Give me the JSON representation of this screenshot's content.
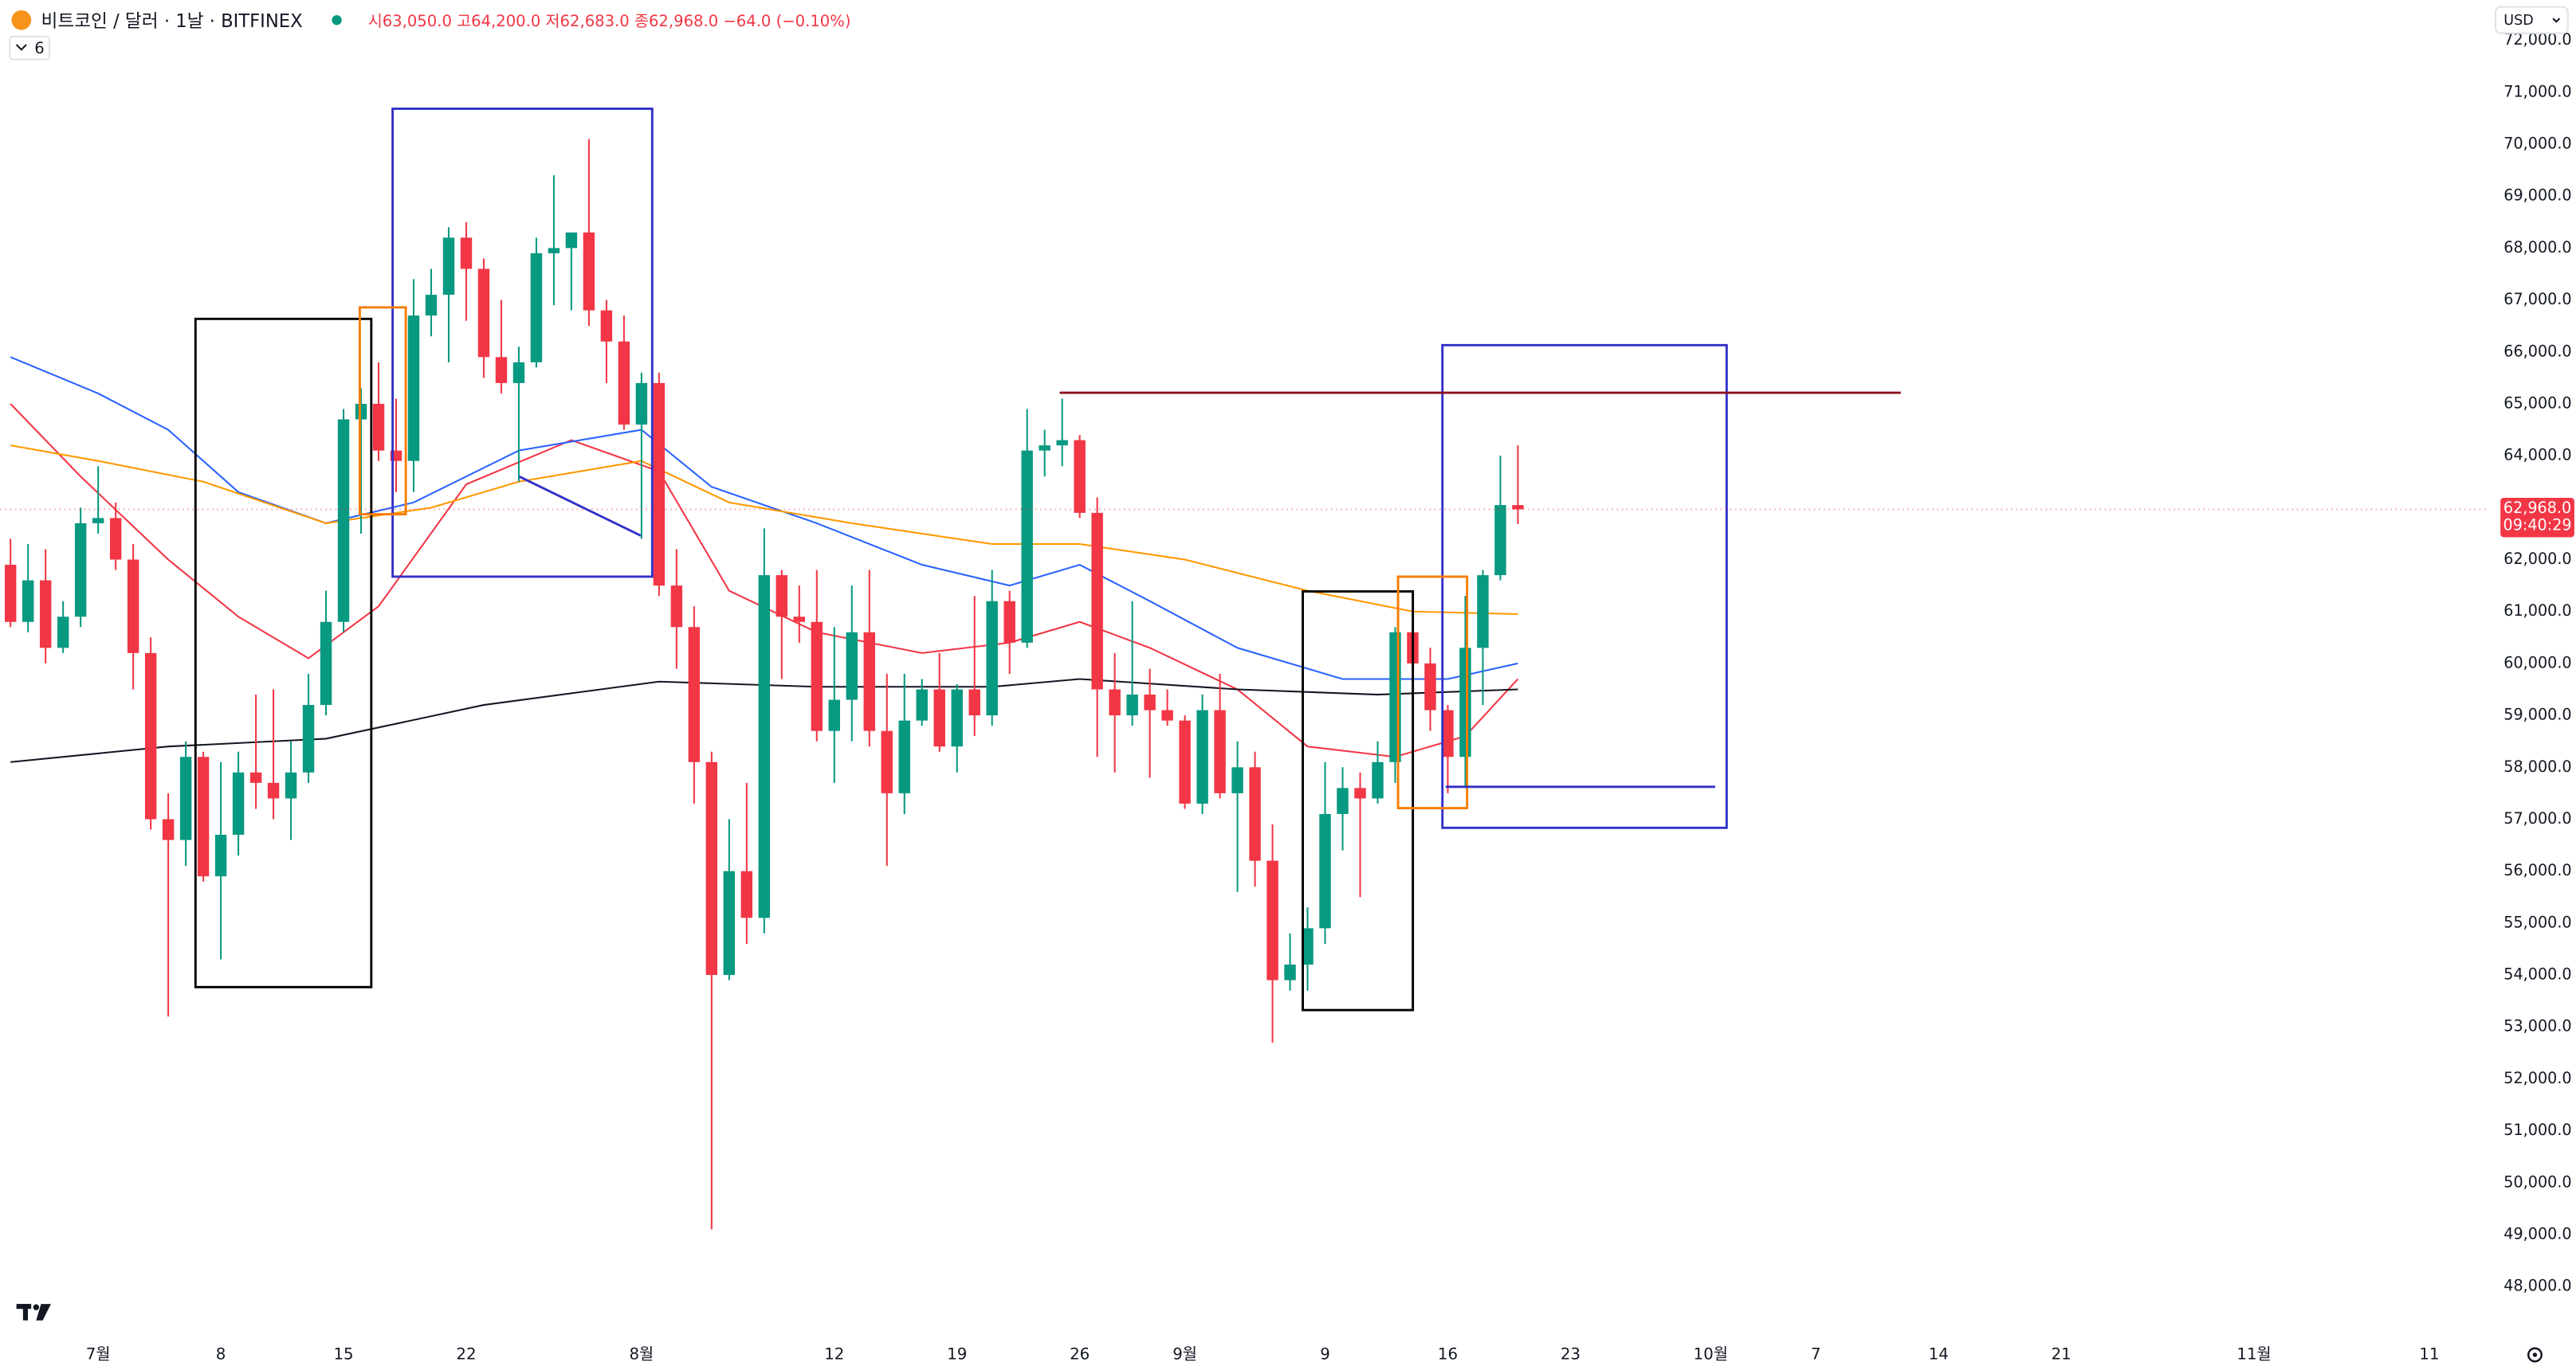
{
  "chart_data": {
    "type": "candlestick",
    "title": "비트코인 / 달러 · 1날 · BITFINEX",
    "legend_ohlc": "시63,050.0 고64,200.0 저62,683.0 종62,968.0 −64.0 (−0.10%)",
    "indicator_count": "6",
    "currency": "USD",
    "last_price_label": "62,968.0",
    "countdown": "09:40:29",
    "up_color": "#089981",
    "down_color": "#f23645",
    "x": [
      -5,
      -4,
      -3,
      -2,
      -1,
      0,
      1,
      2,
      3,
      4,
      5,
      6,
      7,
      8,
      9,
      10,
      11,
      12,
      13,
      14,
      15,
      16,
      17,
      18,
      19,
      20,
      21,
      22,
      23,
      24,
      25,
      26,
      27,
      28,
      29,
      30,
      31,
      32,
      33,
      34,
      35,
      36,
      37,
      38,
      39,
      40,
      41,
      42,
      43,
      44,
      45,
      46,
      47,
      48,
      49,
      50,
      51,
      52,
      53,
      54,
      55,
      56,
      57,
      58,
      59,
      60,
      61,
      62,
      63,
      64,
      65,
      66,
      67,
      68,
      69,
      70,
      71,
      72,
      73,
      74,
      75,
      76,
      77,
      78,
      79,
      80,
      81
    ],
    "open": [
      61900,
      60800,
      61600,
      60300,
      60900,
      62700,
      62800,
      62000,
      60200,
      57000,
      56600,
      58200,
      55900,
      56700,
      57900,
      57700,
      57400,
      57900,
      59200,
      60800,
      64700,
      65000,
      64100,
      63900,
      66700,
      67100,
      68200,
      67600,
      65900,
      65400,
      65800,
      67900,
      68000,
      68300,
      66800,
      66200,
      64600,
      65400,
      61500,
      60700,
      58100,
      54000,
      56000,
      55100,
      61700,
      60900,
      60800,
      58700,
      59300,
      60600,
      58700,
      57500,
      58900,
      59500,
      58400,
      59500,
      59000,
      61200,
      60400,
      64100,
      64200,
      64300,
      62900,
      59500,
      59000,
      59400,
      59100,
      58900,
      57300,
      59100,
      57500,
      58000,
      56200,
      53900,
      54200,
      54900,
      57100,
      57600,
      57400,
      58100,
      60600,
      60000,
      59100,
      58200,
      60300,
      61700,
      63050
    ],
    "high": [
      62400,
      62300,
      62200,
      61200,
      63000,
      63800,
      63100,
      62300,
      60500,
      57500,
      58500,
      58300,
      58100,
      58300,
      59400,
      59500,
      58500,
      59800,
      61400,
      64900,
      65300,
      65800,
      65100,
      67400,
      67600,
      68400,
      68500,
      67800,
      67000,
      66100,
      68200,
      69400,
      68300,
      70100,
      67000,
      66700,
      65600,
      65600,
      62200,
      61100,
      58300,
      57000,
      57700,
      62600,
      61800,
      61500,
      61800,
      60700,
      61500,
      61800,
      59800,
      59800,
      59700,
      60200,
      59600,
      61300,
      61800,
      61400,
      64900,
      64500,
      65100,
      64400,
      63200,
      60200,
      61200,
      59900,
      59500,
      59000,
      59400,
      59800,
      58500,
      58300,
      56900,
      54800,
      55300,
      58100,
      58000,
      57900,
      58500,
      60700,
      60700,
      60300,
      59200,
      61300,
      61800,
      64000,
      64200
    ],
    "low": [
      60700,
      60600,
      60000,
      60200,
      60700,
      62500,
      61800,
      59500,
      56800,
      53200,
      56100,
      55800,
      54300,
      56300,
      57200,
      57000,
      56600,
      57700,
      59000,
      60600,
      62500,
      63900,
      63300,
      63300,
      66300,
      65800,
      66600,
      65500,
      65200,
      63500,
      65700,
      66900,
      66800,
      66500,
      65400,
      64500,
      62400,
      61300,
      59900,
      57300,
      49100,
      53900,
      54600,
      54800,
      59700,
      60400,
      58500,
      57700,
      58500,
      58400,
      56100,
      57100,
      58800,
      58300,
      57900,
      58600,
      58800,
      59800,
      60300,
      63600,
      63800,
      62800,
      58200,
      57900,
      58800,
      57800,
      58800,
      57200,
      57100,
      57400,
      55600,
      55700,
      52700,
      53700,
      53700,
      54600,
      56400,
      55500,
      57300,
      57700,
      59500,
      58700,
      57500,
      57600,
      59200,
      61600,
      62683
    ],
    "close": [
      60800,
      61600,
      60300,
      60900,
      62700,
      62800,
      62000,
      60200,
      57000,
      56600,
      58200,
      55900,
      56700,
      57900,
      57700,
      57400,
      57900,
      59200,
      60800,
      64700,
      65000,
      64100,
      63900,
      66700,
      67100,
      68200,
      67600,
      65900,
      65400,
      65800,
      67900,
      68000,
      68300,
      66800,
      66200,
      64600,
      65400,
      61500,
      60700,
      58100,
      54000,
      56000,
      55100,
      61700,
      60900,
      60800,
      58700,
      59300,
      60600,
      58700,
      57500,
      58900,
      59500,
      58400,
      59500,
      59000,
      61200,
      60400,
      64100,
      64200,
      64300,
      62900,
      59500,
      59000,
      59400,
      59100,
      58900,
      57300,
      59100,
      57500,
      58000,
      56200,
      53900,
      54200,
      54900,
      57100,
      57600,
      57400,
      58100,
      60600,
      60000,
      59100,
      58200,
      60300,
      61700,
      63050,
      62968
    ],
    "series": [
      {
        "color": "#f23645",
        "x": [
          -5,
          -1,
          4,
          8,
          12,
          16,
          21,
          27,
          32,
          36,
          41,
          47,
          52,
          56,
          60,
          65,
          69,
          74,
          78,
          81
        ],
        "values": [
          65000,
          63600,
          62000,
          60900,
          60100,
          61100,
          63450,
          64300,
          63700,
          61400,
          60600,
          60200,
          60400,
          60800,
          60300,
          59500,
          58400,
          58200,
          58600,
          59700
        ]
      },
      {
        "color": "#2962ff",
        "x": [
          -5,
          0,
          4,
          8,
          13,
          18,
          24,
          31,
          35,
          41,
          47,
          52,
          56,
          60,
          65,
          71,
          77,
          81
        ],
        "values": [
          65900,
          65200,
          64500,
          63300,
          62700,
          63100,
          64100,
          64500,
          63400,
          62700,
          61900,
          61500,
          61900,
          61200,
          60300,
          59700,
          59700,
          60000
        ]
      },
      {
        "color": "#ff9800",
        "x": [
          -5,
          0,
          6,
          13,
          19,
          24,
          31,
          36,
          43,
          51,
          56,
          62,
          69,
          75,
          81
        ],
        "values": [
          64200,
          63900,
          63500,
          62700,
          63000,
          63500,
          63900,
          63100,
          62700,
          62300,
          62300,
          62000,
          61400,
          61000,
          60950
        ]
      },
      {
        "color": "#131722",
        "x": [
          -5,
          4,
          13,
          22,
          32,
          41,
          51,
          56,
          65,
          73,
          81
        ],
        "values": [
          58100,
          58400,
          58550,
          59200,
          59650,
          59550,
          59550,
          59700,
          59500,
          59400,
          59500
        ]
      }
    ],
    "xlim": [
      -5.6,
      136.4
    ],
    "xticks": [
      {
        "value": 0,
        "label": "7월"
      },
      {
        "value": 7,
        "label": "8"
      },
      {
        "value": 14,
        "label": "15"
      },
      {
        "value": 21,
        "label": "22"
      },
      {
        "value": 31,
        "label": "8월"
      },
      {
        "value": 42,
        "label": "12"
      },
      {
        "value": 49,
        "label": "19"
      },
      {
        "value": 56,
        "label": "26"
      },
      {
        "value": 62,
        "label": "9월"
      },
      {
        "value": 70,
        "label": "9"
      },
      {
        "value": 77,
        "label": "16"
      },
      {
        "value": 84,
        "label": "23"
      },
      {
        "value": 92,
        "label": "10월"
      },
      {
        "value": 98,
        "label": "7"
      },
      {
        "value": 105,
        "label": "14"
      },
      {
        "value": 112,
        "label": "21"
      },
      {
        "value": 123,
        "label": "11월"
      },
      {
        "value": 133,
        "label": "11"
      }
    ],
    "ylim": [
      47000,
      72770
    ],
    "yticks": [
      {
        "value": 48000,
        "label": "48,000.0"
      },
      {
        "value": 49000,
        "label": "49,000.0"
      },
      {
        "value": 50000,
        "label": "50,000.0"
      },
      {
        "value": 51000,
        "label": "51,000.0"
      },
      {
        "value": 52000,
        "label": "52,000.0"
      },
      {
        "value": 53000,
        "label": "53,000.0"
      },
      {
        "value": 54000,
        "label": "54,000.0"
      },
      {
        "value": 55000,
        "label": "55,000.0"
      },
      {
        "value": 56000,
        "label": "56,000.0"
      },
      {
        "value": 57000,
        "label": "57,000.0"
      },
      {
        "value": 58000,
        "label": "58,000.0"
      },
      {
        "value": 59000,
        "label": "59,000.0"
      },
      {
        "value": 60000,
        "label": "60,000.0"
      },
      {
        "value": 61000,
        "label": "61,000.0"
      },
      {
        "value": 62000,
        "label": "62,000.0"
      },
      {
        "value": 64000,
        "label": "64,000.0"
      },
      {
        "value": 65000,
        "label": "65,000.0"
      },
      {
        "value": 66000,
        "label": "66,000.0"
      },
      {
        "value": 67000,
        "label": "67,000.0"
      },
      {
        "value": 68000,
        "label": "68,000.0"
      },
      {
        "value": 69000,
        "label": "69,000.0"
      },
      {
        "value": 70000,
        "label": "70,000.0"
      },
      {
        "value": 71000,
        "label": "71,000.0"
      },
      {
        "value": 72000,
        "label": "72,000.0"
      }
    ]
  }
}
